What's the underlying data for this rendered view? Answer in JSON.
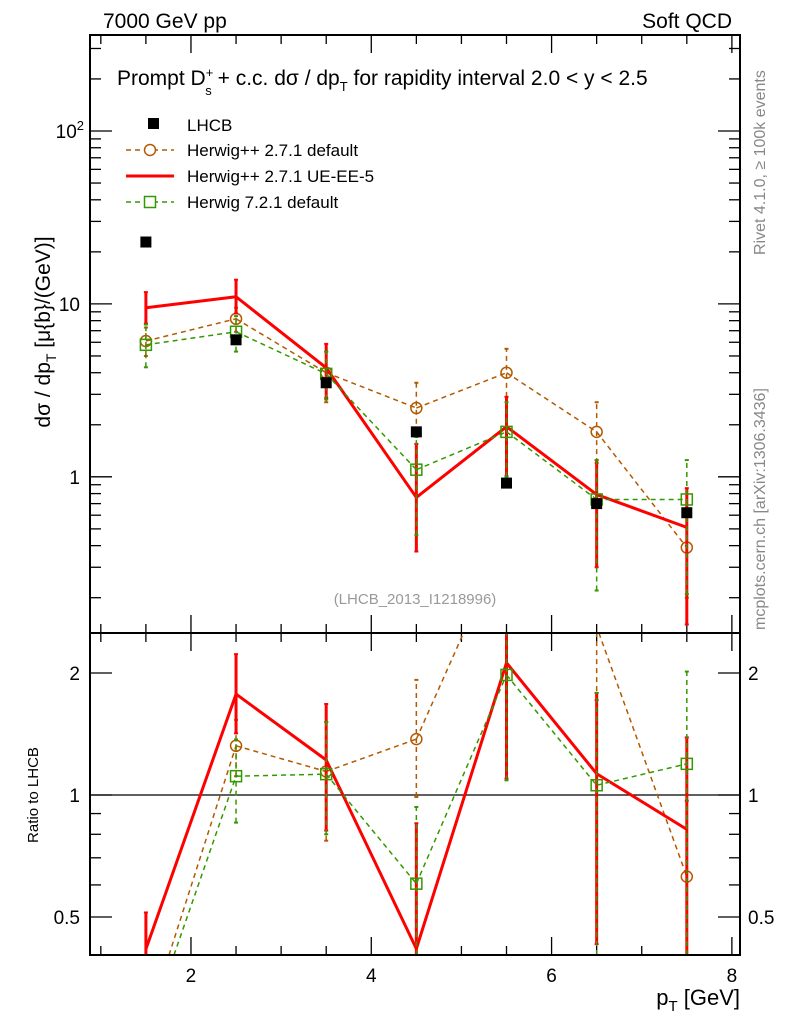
{
  "header": {
    "left": "7000 GeV pp",
    "right": "Soft QCD"
  },
  "side": {
    "rivet": "Rivet 4.1.0, ≥ 100k events",
    "mcplots": "mcplots.cern.ch [arXiv:1306.3436]"
  },
  "chart_data": {
    "type": "line",
    "title": "Prompt D_s^+ + c.c.  dσ / dp_T for rapidity interval 2.0 < y < 2.5",
    "title_parts": {
      "a": "Prompt D",
      "sup": "+",
      "sub": "s",
      "b": " + c.c.  dσ / dp",
      "sub2": "T",
      "c": " for rapidity interval 2.0 < y < 2.5"
    },
    "xlabel": "p_T [GeV]",
    "xlabel_main": "p",
    "xlabel_sub": "T",
    "xlabel_unit": " [GeV]",
    "ylabel": "dσ / dp_T [μ{b}/(GeV)]",
    "ylabel_parts": {
      "a": "dσ / dp",
      "sub": "T",
      "b": "  [μ{b}/(GeV)]"
    },
    "ratio_ylabel": "Ratio to LHCB",
    "analysis": "(LHCB_2013_I1218996)",
    "xlim": [
      0.88,
      8.09
    ],
    "ylim": [
      0.125,
      359
    ],
    "yscale": "log",
    "ratio_ylim": [
      0.403,
      2.51
    ],
    "xticks": [
      "2",
      "4",
      "6",
      "8"
    ],
    "yticks": [
      {
        "v": 100,
        "label": "10",
        "sup": "2"
      },
      {
        "v": 10,
        "label": "10",
        "sup": ""
      },
      {
        "v": 1,
        "label": "1",
        "sup": ""
      }
    ],
    "ratio_yticks": [
      "0.5",
      "1",
      "2"
    ],
    "x": [
      1.5,
      2.5,
      3.5,
      4.5,
      5.5,
      6.5,
      7.5
    ],
    "data": {
      "name": "LHCB",
      "values": [
        22.8,
        6.2,
        3.5,
        1.82,
        0.92,
        0.7,
        0.62
      ]
    },
    "series": [
      {
        "name": "Herwig++ 2.7.1 default",
        "color": "#b35900",
        "marker": "circle",
        "dash": true,
        "values": [
          6.1,
          8.2,
          4.0,
          2.5,
          4.0,
          1.82,
          0.39
        ],
        "lo": [
          5.0,
          6.9,
          2.7,
          1.8,
          2.9,
          1.2,
          0.2
        ],
        "hi": [
          7.3,
          9.5,
          5.3,
          3.5,
          5.5,
          2.7,
          0.6
        ]
      },
      {
        "name": "Herwig++ 2.7.1 UE-EE-5",
        "color": "#ff0000",
        "marker": "none",
        "dash": false,
        "values": [
          9.5,
          11.0,
          4.27,
          0.76,
          1.95,
          0.79,
          0.51
        ],
        "lo": [
          7.7,
          8.8,
          2.86,
          0.37,
          1.01,
          0.3,
          0.14
        ],
        "hi": [
          11.7,
          13.8,
          5.87,
          1.55,
          2.9,
          1.25,
          0.86
        ]
      },
      {
        "name": "Herwig 7.2.1 default",
        "color": "#339900",
        "marker": "square",
        "dash": true,
        "values": [
          5.8,
          6.9,
          3.94,
          1.1,
          1.82,
          0.74,
          0.74
        ],
        "lo": [
          4.3,
          5.3,
          2.8,
          0.46,
          1.0,
          0.22,
          0.21
        ],
        "hi": [
          7.6,
          8.5,
          5.3,
          1.7,
          2.7,
          1.25,
          1.25
        ]
      }
    ]
  }
}
